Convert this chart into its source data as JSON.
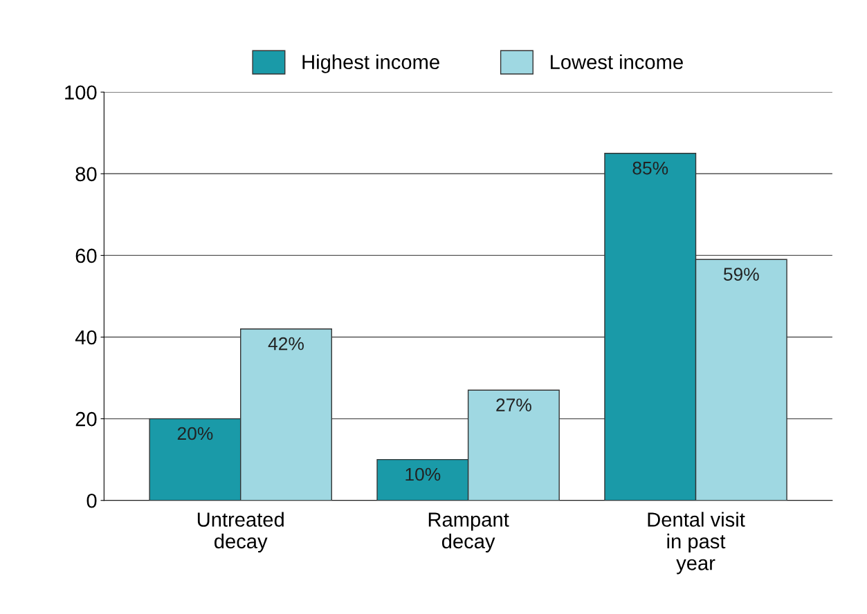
{
  "chart_data": {
    "type": "bar",
    "categories": [
      "Untreated\ndecay",
      "Rampant\ndecay",
      "Dental visit\nin past\nyear"
    ],
    "series": [
      {
        "name": "Highest income",
        "color": "#1a9aa8",
        "values": [
          20,
          10,
          85
        ],
        "value_labels": [
          "20%",
          "10%",
          "85%"
        ]
      },
      {
        "name": "Lowest income",
        "color": "#9fd8e2",
        "values": [
          42,
          27,
          59
        ],
        "value_labels": [
          "42%",
          "27%",
          "59%"
        ]
      }
    ],
    "ylim": [
      0,
      100
    ],
    "yticks": [
      0,
      20,
      40,
      60,
      80,
      100
    ],
    "grid": "y",
    "legend": "top"
  }
}
